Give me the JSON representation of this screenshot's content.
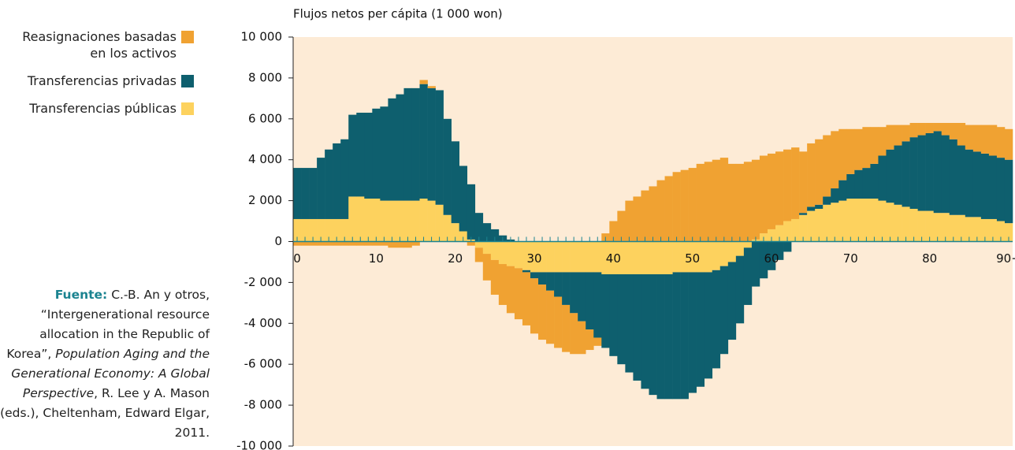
{
  "chart_data": {
    "type": "bar",
    "stacked": true,
    "y_label": "Flujos netos per cápita (1 000 won)",
    "categories": [
      "0",
      null,
      null,
      null,
      null,
      null,
      null,
      null,
      null,
      null,
      "10",
      null,
      null,
      null,
      null,
      null,
      null,
      null,
      null,
      null,
      "20",
      null,
      null,
      null,
      null,
      null,
      null,
      null,
      null,
      null,
      "30",
      null,
      null,
      null,
      null,
      null,
      null,
      null,
      null,
      null,
      "40",
      null,
      null,
      null,
      null,
      null,
      null,
      null,
      null,
      null,
      "50",
      null,
      null,
      null,
      null,
      null,
      null,
      null,
      null,
      null,
      "60",
      null,
      null,
      null,
      null,
      null,
      null,
      null,
      null,
      null,
      "70",
      null,
      null,
      null,
      null,
      null,
      null,
      null,
      null,
      null,
      "80",
      null,
      null,
      null,
      null,
      null,
      null,
      null,
      null,
      null,
      "90+"
    ],
    "series": [
      {
        "name": "Reasignaciones basadas en los activos",
        "color": "#f0a232",
        "values": [
          -200,
          -200,
          -200,
          -200,
          -200,
          -200,
          -200,
          -200,
          -200,
          -200,
          -200,
          -200,
          -300,
          -300,
          -300,
          -200,
          200,
          100,
          0,
          0,
          0,
          0,
          -200,
          -700,
          -1300,
          -1700,
          -2000,
          -2300,
          -2500,
          -2600,
          -2700,
          -2700,
          -2600,
          -2500,
          -2300,
          -2000,
          -1600,
          -1000,
          -400,
          400,
          1000,
          1500,
          2000,
          2200,
          2500,
          2700,
          3000,
          3200,
          3400,
          3500,
          3600,
          3800,
          3900,
          4000,
          4100,
          3800,
          3800,
          3900,
          3900,
          3800,
          3700,
          3600,
          3500,
          3500,
          3000,
          3100,
          3200,
          3000,
          2800,
          2500,
          2200,
          2000,
          2000,
          1800,
          1400,
          1200,
          1000,
          800,
          700,
          600,
          500,
          400,
          600,
          800,
          1100,
          1200,
          1300,
          1400,
          1500,
          1500,
          1500
        ]
      },
      {
        "name": "Transferencias privadas",
        "color": "#0e5f6e",
        "values": [
          2500,
          2500,
          2500,
          3000,
          3400,
          3700,
          3900,
          4000,
          4100,
          4200,
          4400,
          4600,
          5000,
          5200,
          5500,
          5500,
          5600,
          5500,
          5600,
          4700,
          4000,
          3200,
          2700,
          1400,
          900,
          600,
          300,
          100,
          0,
          -100,
          -300,
          -600,
          -900,
          -1200,
          -1600,
          -2000,
          -2400,
          -2800,
          -3200,
          -3600,
          -4000,
          -4400,
          -4800,
          -5200,
          -5600,
          -5900,
          -6100,
          -6100,
          -6200,
          -6200,
          -5900,
          -5600,
          -5200,
          -4800,
          -4300,
          -3800,
          -3300,
          -2800,
          -2200,
          -1800,
          -1400,
          -900,
          -500,
          0,
          100,
          200,
          200,
          400,
          700,
          1000,
          1200,
          1400,
          1500,
          1700,
          2200,
          2600,
          2900,
          3200,
          3500,
          3700,
          3800,
          4000,
          3800,
          3700,
          3400,
          3300,
          3200,
          3200,
          3100,
          3100,
          3100
        ]
      },
      {
        "name": "Transferencias públicas",
        "color": "#fdd25e",
        "values": [
          1100,
          1100,
          1100,
          1100,
          1100,
          1100,
          1100,
          2200,
          2200,
          2100,
          2100,
          2000,
          2000,
          2000,
          2000,
          2000,
          2100,
          2000,
          1800,
          1300,
          900,
          500,
          100,
          -300,
          -600,
          -900,
          -1100,
          -1200,
          -1300,
          -1400,
          -1500,
          -1500,
          -1500,
          -1500,
          -1500,
          -1500,
          -1500,
          -1500,
          -1500,
          -1600,
          -1600,
          -1600,
          -1600,
          -1600,
          -1600,
          -1600,
          -1600,
          -1600,
          -1500,
          -1500,
          -1500,
          -1500,
          -1500,
          -1400,
          -1200,
          -1000,
          -700,
          -300,
          100,
          400,
          600,
          800,
          1000,
          1100,
          1300,
          1500,
          1600,
          1800,
          1900,
          2000,
          2100,
          2100,
          2100,
          2100,
          2000,
          1900,
          1800,
          1700,
          1600,
          1500,
          1500,
          1400,
          1400,
          1300,
          1300,
          1200,
          1200,
          1100,
          1100,
          1000,
          900
        ]
      }
    ],
    "ylim": [
      -10000,
      10000
    ],
    "yticks": [
      {
        "value": -10000,
        "label": "-10 000"
      },
      {
        "value": -8000,
        "label": "-8 000"
      },
      {
        "value": -6000,
        "label": "-6 000"
      },
      {
        "value": -4000,
        "label": "-4 000"
      },
      {
        "value": -2000,
        "label": "-2 000"
      },
      0,
      {
        "value": 2000,
        "label": "2 000"
      },
      {
        "value": 4000,
        "label": "4 000"
      },
      {
        "value": 6000,
        "label": "6 000"
      },
      {
        "value": 8000,
        "label": "8 000"
      },
      {
        "value": 10000,
        "label": "10 000"
      }
    ],
    "background": "#fdebd6",
    "source": {
      "label": "Fuente:",
      "text": [
        "C.-B. An y otros, “Intergenerational resource allocation in the Republic of Korea”, ",
        "Population Aging and the Generational Economy: A Global Perspective",
        ", R. Lee y A. Mason (eds.), Cheltenham, Edward Elgar, 2011."
      ]
    }
  }
}
